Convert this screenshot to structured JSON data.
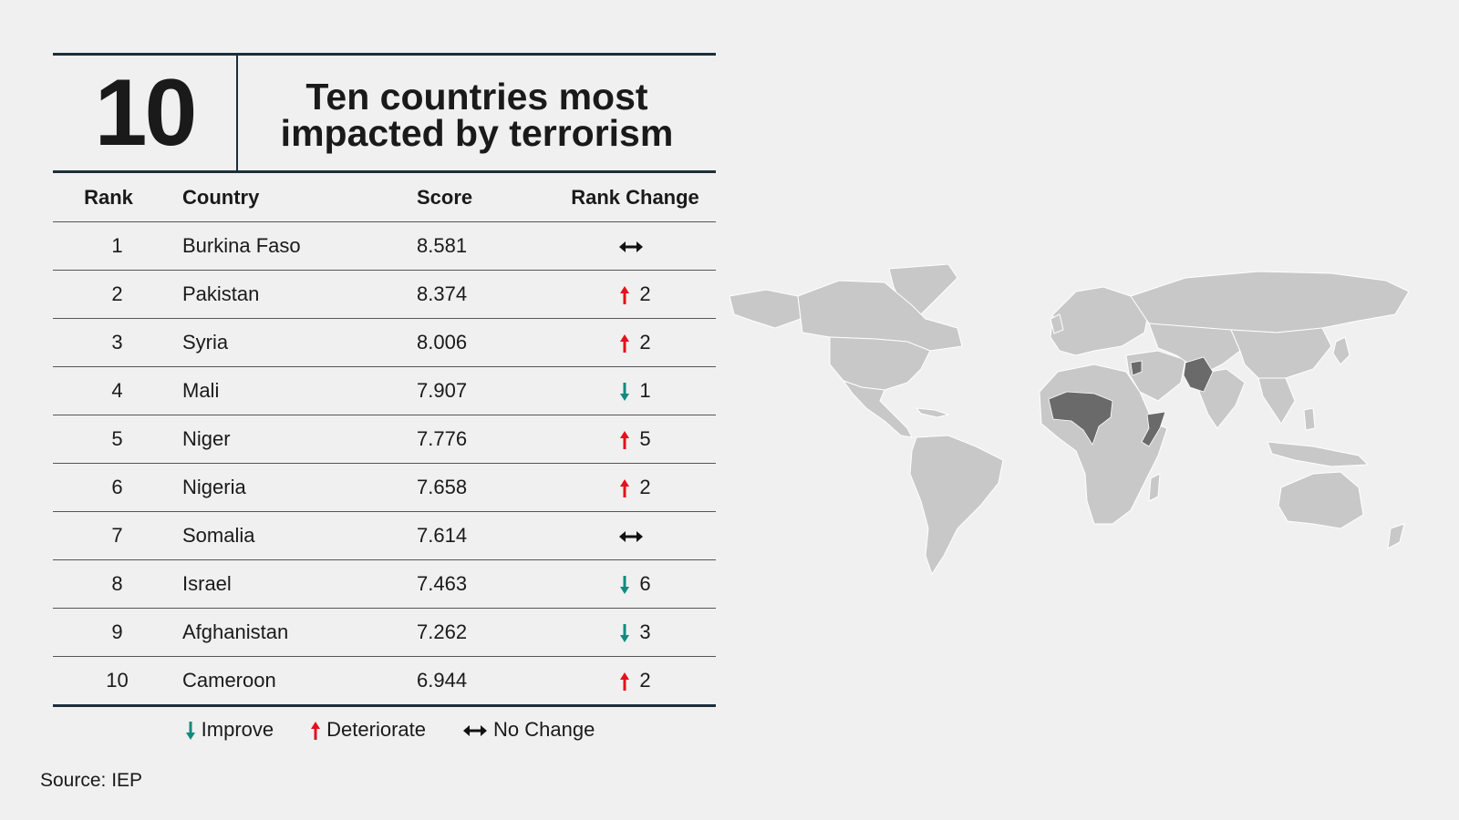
{
  "header": {
    "number": "10",
    "title_line1": "Ten countries most",
    "title_line2": "impacted by terrorism"
  },
  "table": {
    "columns": [
      "Rank",
      "Country",
      "Score",
      "Rank Change"
    ],
    "rows": [
      {
        "rank": "1",
        "country": "Burkina Faso",
        "score": "8.581",
        "direction": "no-change",
        "change": ""
      },
      {
        "rank": "2",
        "country": "Pakistan",
        "score": "8.374",
        "direction": "deteriorate",
        "change": "2"
      },
      {
        "rank": "3",
        "country": "Syria",
        "score": "8.006",
        "direction": "deteriorate",
        "change": "2"
      },
      {
        "rank": "4",
        "country": "Mali",
        "score": "7.907",
        "direction": "improve",
        "change": "1"
      },
      {
        "rank": "5",
        "country": "Niger",
        "score": "7.776",
        "direction": "deteriorate",
        "change": "5"
      },
      {
        "rank": "6",
        "country": "Nigeria",
        "score": "7.658",
        "direction": "deteriorate",
        "change": "2"
      },
      {
        "rank": "7",
        "country": "Somalia",
        "score": "7.614",
        "direction": "no-change",
        "change": ""
      },
      {
        "rank": "8",
        "country": "Israel",
        "score": "7.463",
        "direction": "improve",
        "change": "6"
      },
      {
        "rank": "9",
        "country": "Afghanistan",
        "score": "7.262",
        "direction": "improve",
        "change": "3"
      },
      {
        "rank": "10",
        "country": "Cameroon",
        "score": "6.944",
        "direction": "deteriorate",
        "change": "2"
      }
    ]
  },
  "legend": {
    "improve": "Improve",
    "deteriorate": "Deteriorate",
    "no_change": "No Change"
  },
  "source": "Source: IEP",
  "colors": {
    "improve": "#128a7e",
    "deteriorate": "#e3101e",
    "no_change": "#111111",
    "map_land": "#c8c8c8",
    "map_highlight": "#6a6a6a",
    "rule": "#1b2f3a"
  }
}
